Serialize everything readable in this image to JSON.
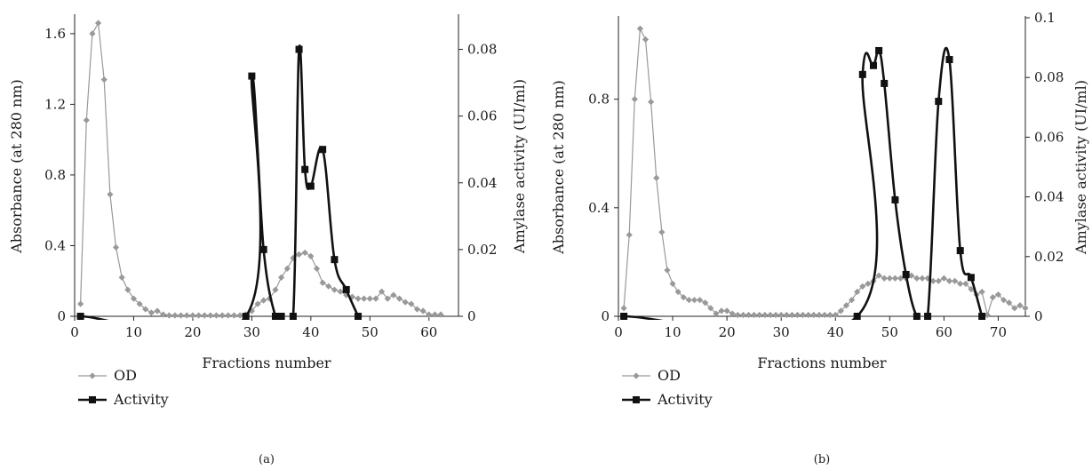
{
  "chart_data": [
    {
      "type": "line",
      "panel_label": "(a)",
      "xlabel": "Fractions number",
      "ylabel": "Absorbance (at 280 nm)",
      "y2label": "Amylase activity (UI/ml)",
      "xlim": [
        0,
        65
      ],
      "ylim": [
        0,
        1.7
      ],
      "y2lim": [
        0,
        0.09
      ],
      "x_ticks": [
        0,
        10,
        20,
        30,
        40,
        50,
        60
      ],
      "y_ticks": [
        0,
        0.4,
        0.8,
        1.2,
        1.6
      ],
      "y_tick_labels": [
        "0",
        "0.4",
        "0.8",
        "1.2",
        "1.6"
      ],
      "y2_ticks": [
        0,
        0.02,
        0.04,
        0.06,
        0.08
      ],
      "y2_tick_labels": [
        "0",
        "0.02",
        "0.04",
        "0.06",
        "0.08"
      ],
      "legend_position": "bottom-left",
      "series": [
        {
          "name": "OD",
          "axis": "left",
          "color": "#999999",
          "marker": "diamond",
          "x": [
            1,
            2,
            3,
            4,
            5,
            6,
            7,
            8,
            9,
            10,
            11,
            12,
            13,
            14,
            15,
            16,
            17,
            18,
            19,
            20,
            21,
            22,
            23,
            24,
            25,
            26,
            27,
            28,
            29,
            30,
            31,
            32,
            33,
            34,
            35,
            36,
            37,
            38,
            39,
            40,
            41,
            42,
            43,
            44,
            45,
            46,
            47,
            48,
            49,
            50,
            51,
            52,
            53,
            54,
            55,
            56,
            57,
            58,
            59,
            60,
            61,
            62
          ],
          "y": [
            0.07,
            1.11,
            1.6,
            1.66,
            1.34,
            0.69,
            0.39,
            0.22,
            0.15,
            0.1,
            0.07,
            0.04,
            0.02,
            0.03,
            0.01,
            0.005,
            0.005,
            0.005,
            0.005,
            0.005,
            0.005,
            0.005,
            0.005,
            0.005,
            0.005,
            0.005,
            0.005,
            0.005,
            0.01,
            0.03,
            0.07,
            0.09,
            0.1,
            0.15,
            0.22,
            0.27,
            0.33,
            0.35,
            0.36,
            0.34,
            0.27,
            0.19,
            0.17,
            0.15,
            0.14,
            0.12,
            0.11,
            0.1,
            0.1,
            0.1,
            0.1,
            0.14,
            0.1,
            0.12,
            0.1,
            0.08,
            0.07,
            0.04,
            0.03,
            0.01,
            0.01,
            0.01
          ]
        },
        {
          "name": "Activity",
          "axis": "right",
          "color": "#111111",
          "marker": "square",
          "x": [
            1,
            29,
            30,
            32,
            34,
            35,
            37,
            38,
            39,
            40,
            42,
            44,
            46,
            48
          ],
          "y": [
            0,
            0,
            0.072,
            0.02,
            0,
            0,
            0,
            0.08,
            0.044,
            0.039,
            0.05,
            0.017,
            0.008,
            0
          ]
        }
      ]
    },
    {
      "type": "line",
      "panel_label": "(b)",
      "xlabel": "Fractions number",
      "ylabel": "Absorbance (at 280 nm)",
      "y2label": "Amylase activity (UI/ml)",
      "xlim": [
        0,
        75
      ],
      "ylim": [
        0,
        1.1
      ],
      "y2lim": [
        0,
        0.1
      ],
      "x_ticks": [
        0,
        10,
        20,
        30,
        40,
        50,
        60,
        70
      ],
      "y_ticks": [
        0,
        0.4,
        0.8
      ],
      "y_tick_labels": [
        "0",
        "0.4",
        "0.8"
      ],
      "y2_ticks": [
        0,
        0.02,
        0.04,
        0.06,
        0.08,
        0.1
      ],
      "y2_tick_labels": [
        "0",
        "0.02",
        "0.04",
        "0.06",
        "0.08",
        "0.1"
      ],
      "legend_position": "bottom-left",
      "series": [
        {
          "name": "OD",
          "axis": "left",
          "color": "#999999",
          "marker": "diamond",
          "x": [
            1,
            2,
            3,
            4,
            5,
            6,
            7,
            8,
            9,
            10,
            11,
            12,
            13,
            14,
            15,
            16,
            17,
            18,
            19,
            20,
            21,
            22,
            23,
            24,
            25,
            26,
            27,
            28,
            29,
            30,
            31,
            32,
            33,
            34,
            35,
            36,
            37,
            38,
            39,
            40,
            41,
            42,
            43,
            44,
            45,
            46,
            47,
            48,
            49,
            50,
            51,
            52,
            53,
            54,
            55,
            56,
            57,
            58,
            59,
            60,
            61,
            62,
            63,
            64,
            65,
            66,
            67,
            68,
            69,
            70,
            71,
            72,
            73,
            74,
            75
          ],
          "y": [
            0.03,
            0.3,
            0.8,
            1.06,
            1.02,
            0.79,
            0.51,
            0.31,
            0.17,
            0.12,
            0.09,
            0.07,
            0.06,
            0.06,
            0.06,
            0.05,
            0.03,
            0.01,
            0.02,
            0.02,
            0.01,
            0.005,
            0.005,
            0.005,
            0.005,
            0.005,
            0.005,
            0.005,
            0.005,
            0.005,
            0.005,
            0.005,
            0.005,
            0.005,
            0.005,
            0.005,
            0.005,
            0.005,
            0.005,
            0.005,
            0.02,
            0.04,
            0.06,
            0.09,
            0.11,
            0.12,
            0.13,
            0.15,
            0.14,
            0.14,
            0.14,
            0.14,
            0.14,
            0.15,
            0.14,
            0.14,
            0.14,
            0.13,
            0.13,
            0.14,
            0.13,
            0.13,
            0.12,
            0.12,
            0.1,
            0.08,
            0.09,
            0.005,
            0.07,
            0.08,
            0.06,
            0.05,
            0.03,
            0.04,
            0.03
          ]
        },
        {
          "name": "Activity",
          "axis": "right",
          "color": "#111111",
          "marker": "square",
          "x": [
            1,
            44,
            45,
            47,
            48,
            49,
            51,
            53,
            55,
            57,
            59,
            61,
            63,
            65,
            67
          ],
          "y": [
            0,
            0,
            0.081,
            0.084,
            0.089,
            0.078,
            0.039,
            0.014,
            0,
            0,
            0.072,
            0.086,
            0.022,
            0.013,
            0
          ]
        }
      ]
    }
  ]
}
